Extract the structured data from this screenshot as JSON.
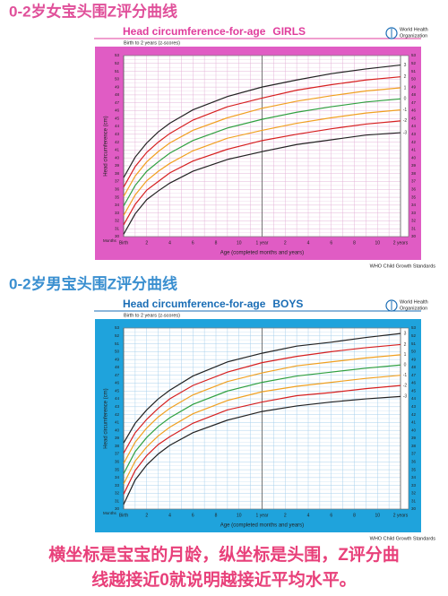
{
  "chart_data": [
    {
      "type": "line",
      "heading": "0-2岁女宝头围Z评分曲线",
      "title": "Head circumference-for-age",
      "sex": "GIRLS",
      "subtitle": "Birth to 2 years (z-scores)",
      "org": [
        "World Health",
        "Organization"
      ],
      "footer": "WHO Child Growth Standards",
      "y_label": "Head circumference (cm)",
      "x_label": "Age (completed months and years)",
      "months_label": "Months",
      "heading_color": "#e0509a",
      "title_color": "#e03c9c",
      "frame_color": "#e05cc4",
      "grid_color": "#e4b4d8",
      "minor_grid": true,
      "x": [
        0,
        1,
        2,
        3,
        4,
        6,
        9,
        12,
        15,
        18,
        21,
        24
      ],
      "xlim": [
        0,
        24
      ],
      "ylim": [
        30,
        53
      ],
      "xticks": [
        {
          "value": 0,
          "label": "Birth"
        },
        2,
        4,
        6,
        8,
        10,
        {
          "value": 12,
          "label": "1 year"
        },
        {
          "value": 14,
          "label": "2"
        },
        {
          "value": 16,
          "label": "4"
        },
        {
          "value": 18,
          "label": "6"
        },
        {
          "value": 20,
          "label": "8"
        },
        {
          "value": 22,
          "label": "10"
        },
        {
          "value": 24,
          "label": "2 years"
        }
      ],
      "yticks": [
        30,
        31,
        32,
        33,
        34,
        35,
        36,
        37,
        38,
        39,
        40,
        41,
        42,
        43,
        44,
        45,
        46,
        47,
        48,
        49,
        50,
        51,
        52,
        53
      ],
      "series": [
        {
          "name": "3",
          "color": "#222222",
          "values": [
            37.5,
            40.1,
            41.9,
            43.3,
            44.4,
            46.1,
            47.8,
            49.0,
            49.9,
            50.7,
            51.3,
            51.8
          ]
        },
        {
          "name": "2",
          "color": "#d62020",
          "values": [
            36.3,
            38.9,
            40.7,
            42.0,
            43.1,
            44.8,
            46.5,
            47.6,
            48.6,
            49.3,
            49.9,
            50.3
          ]
        },
        {
          "name": "1",
          "color": "#f0a020",
          "values": [
            35.1,
            37.7,
            39.5,
            40.8,
            41.9,
            43.5,
            45.1,
            46.3,
            47.2,
            47.9,
            48.5,
            48.9
          ]
        },
        {
          "name": "0",
          "color": "#30a040",
          "values": [
            33.9,
            36.5,
            38.3,
            39.5,
            40.6,
            42.2,
            43.8,
            44.9,
            45.8,
            46.5,
            47.1,
            47.5
          ]
        },
        {
          "name": "-1",
          "color": "#f0a020",
          "values": [
            32.7,
            35.3,
            37.1,
            38.3,
            39.3,
            40.9,
            42.5,
            43.5,
            44.4,
            45.1,
            45.7,
            46.1
          ]
        },
        {
          "name": "-2",
          "color": "#d62020",
          "values": [
            31.5,
            34.1,
            35.9,
            37.0,
            38.1,
            39.6,
            41.1,
            42.2,
            43.0,
            43.7,
            44.3,
            44.7
          ]
        },
        {
          "name": "-3",
          "color": "#222222",
          "values": [
            30.3,
            32.9,
            34.7,
            35.8,
            36.8,
            38.3,
            39.8,
            40.8,
            41.7,
            42.3,
            42.9,
            43.2
          ]
        }
      ]
    },
    {
      "type": "line",
      "heading": "0-2岁男宝头围Z评分曲线",
      "title": "Head circumference-for-age",
      "sex": "BOYS",
      "subtitle": "Birth to 2 years (z-scores)",
      "org": [
        "World Health",
        "Organization"
      ],
      "footer": "WHO Child Growth Standards",
      "y_label": "Head circumference (cm)",
      "x_label": "Age (completed months and years)",
      "months_label": "Months",
      "heading_color": "#3a8fd0",
      "title_color": "#1a6db5",
      "frame_color": "#1fa3dc",
      "grid_color": "#a8d0ec",
      "minor_grid": true,
      "x": [
        0,
        1,
        2,
        3,
        4,
        6,
        9,
        12,
        15,
        18,
        21,
        24
      ],
      "xlim": [
        0,
        24
      ],
      "ylim": [
        30,
        53
      ],
      "xticks": [
        {
          "value": 0,
          "label": "Birth"
        },
        2,
        4,
        6,
        8,
        10,
        {
          "value": 12,
          "label": "1 year"
        },
        {
          "value": 14,
          "label": "2"
        },
        {
          "value": 16,
          "label": "4"
        },
        {
          "value": 18,
          "label": "6"
        },
        {
          "value": 20,
          "label": "8"
        },
        {
          "value": 22,
          "label": "10"
        },
        {
          "value": 24,
          "label": "2 years"
        }
      ],
      "yticks": [
        30,
        31,
        32,
        33,
        34,
        35,
        36,
        37,
        38,
        39,
        40,
        41,
        42,
        43,
        44,
        45,
        46,
        47,
        48,
        49,
        50,
        51,
        52,
        53
      ],
      "series": [
        {
          "name": "3",
          "color": "#222222",
          "values": [
            38.4,
            40.9,
            42.6,
            44.0,
            45.1,
            46.9,
            48.7,
            49.8,
            50.7,
            51.2,
            51.8,
            52.3
          ]
        },
        {
          "name": "2",
          "color": "#d62020",
          "values": [
            37.1,
            39.7,
            41.4,
            42.8,
            44.0,
            45.7,
            47.4,
            48.6,
            49.4,
            50.0,
            50.5,
            50.9
          ]
        },
        {
          "name": "1",
          "color": "#f0a020",
          "values": [
            35.8,
            38.5,
            40.3,
            41.7,
            42.8,
            44.5,
            46.2,
            47.3,
            48.2,
            48.7,
            49.2,
            49.6
          ]
        },
        {
          "name": "0",
          "color": "#30a040",
          "values": [
            34.5,
            37.3,
            39.1,
            40.5,
            41.6,
            43.3,
            45.0,
            46.1,
            46.9,
            47.4,
            47.9,
            48.3
          ]
        },
        {
          "name": "-1",
          "color": "#f0a020",
          "values": [
            33.2,
            36.1,
            37.9,
            39.3,
            40.4,
            42.1,
            43.8,
            44.9,
            45.6,
            46.1,
            46.6,
            47.0
          ]
        },
        {
          "name": "-2",
          "color": "#d62020",
          "values": [
            31.9,
            34.9,
            36.8,
            38.2,
            39.2,
            40.9,
            42.6,
            43.6,
            44.4,
            44.8,
            45.3,
            45.7
          ]
        },
        {
          "name": "-3",
          "color": "#222222",
          "values": [
            30.6,
            33.7,
            35.6,
            37.0,
            38.1,
            39.7,
            41.3,
            42.4,
            43.1,
            43.6,
            44.0,
            44.3
          ]
        }
      ]
    }
  ],
  "caption": [
    "横坐标是宝宝的月龄，纵坐标是头围，Z评分曲",
    "线越接近0就说明越接近平均水平。"
  ]
}
